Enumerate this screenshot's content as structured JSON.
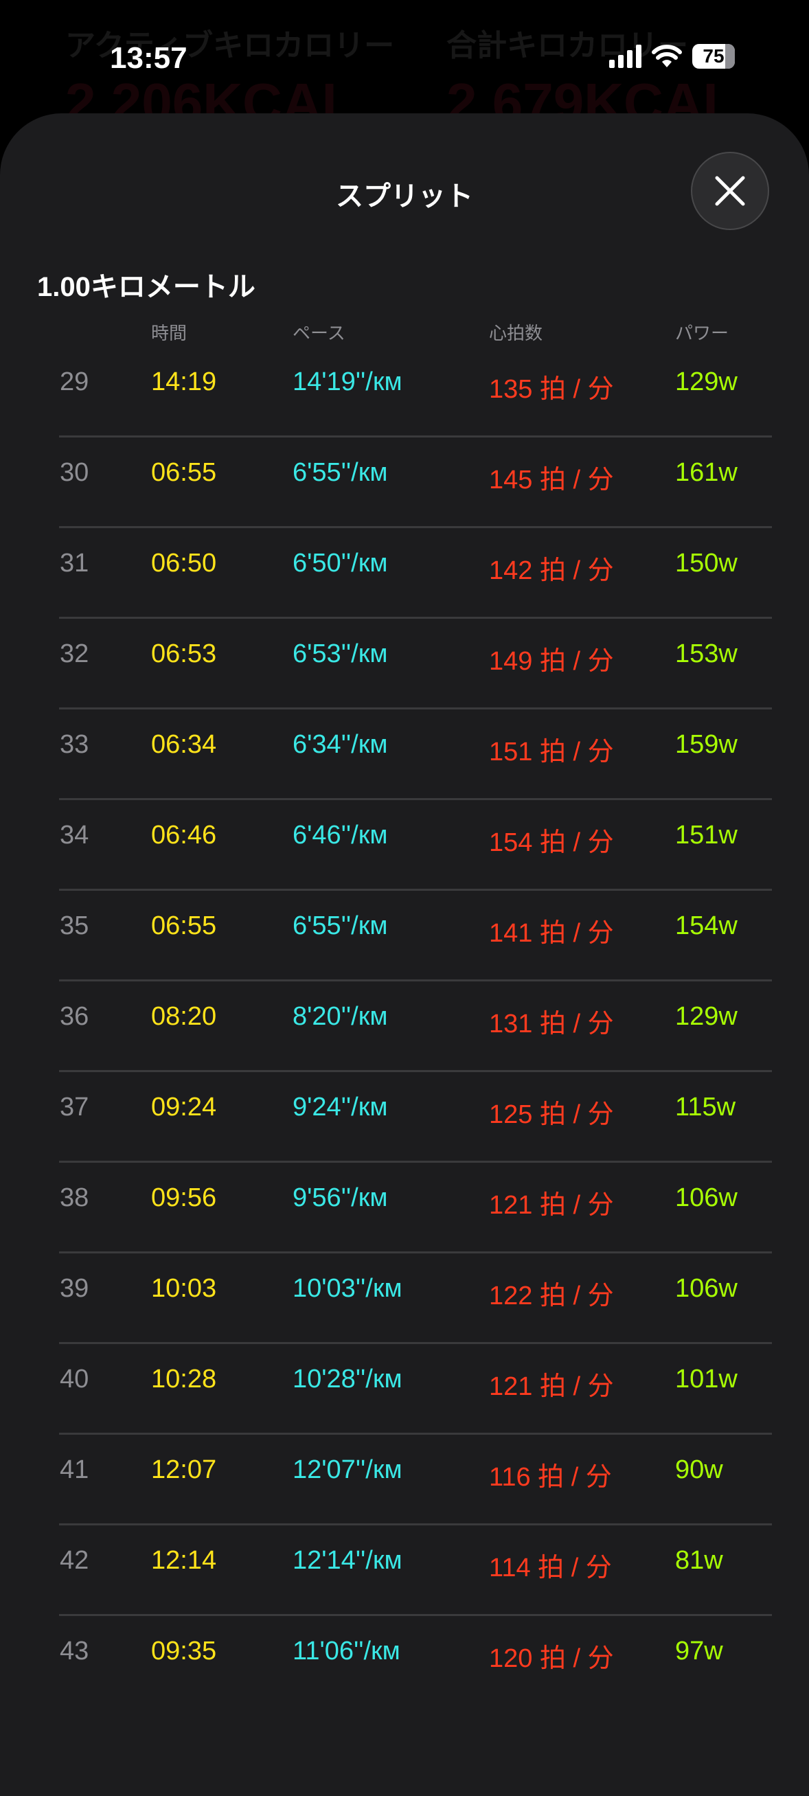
{
  "background": {
    "stats": [
      {
        "label": "アクティブキロカロリー",
        "value": "2,206KCAL"
      },
      {
        "label": "合計キロカロリー",
        "value": "2,679KCAL"
      }
    ]
  },
  "status_bar": {
    "time": "13:57",
    "battery": "75",
    "icons": [
      "cellular-signal-icon",
      "wifi-icon",
      "battery-icon"
    ]
  },
  "sheet": {
    "title": "スプリット",
    "close_icon": "close-icon",
    "section_title": "1.00キロメートル",
    "columns": {
      "time": "時間",
      "pace": "ペース",
      "heart_rate": "心拍数",
      "power": "パワー"
    },
    "colors": {
      "index": "#8e8e93",
      "time": "#ffe31a",
      "pace": "#3ae8e6",
      "heart_rate": "#ff3b1f",
      "power": "#a8ff04"
    },
    "rows": [
      {
        "index": "29",
        "time": "14:19",
        "pace": "14'19''/км",
        "heart_rate": "135 拍 / 分",
        "power": "129w"
      },
      {
        "index": "30",
        "time": "06:55",
        "pace": "6'55''/км",
        "heart_rate": "145 拍 / 分",
        "power": "161w"
      },
      {
        "index": "31",
        "time": "06:50",
        "pace": "6'50''/км",
        "heart_rate": "142 拍 / 分",
        "power": "150w"
      },
      {
        "index": "32",
        "time": "06:53",
        "pace": "6'53''/км",
        "heart_rate": "149 拍 / 分",
        "power": "153w"
      },
      {
        "index": "33",
        "time": "06:34",
        "pace": "6'34''/км",
        "heart_rate": "151 拍 / 分",
        "power": "159w"
      },
      {
        "index": "34",
        "time": "06:46",
        "pace": "6'46''/км",
        "heart_rate": "154 拍 / 分",
        "power": "151w"
      },
      {
        "index": "35",
        "time": "06:55",
        "pace": "6'55''/км",
        "heart_rate": "141 拍 / 分",
        "power": "154w"
      },
      {
        "index": "36",
        "time": "08:20",
        "pace": "8'20''/км",
        "heart_rate": "131 拍 / 分",
        "power": "129w"
      },
      {
        "index": "37",
        "time": "09:24",
        "pace": "9'24''/км",
        "heart_rate": "125 拍 / 分",
        "power": "115w"
      },
      {
        "index": "38",
        "time": "09:56",
        "pace": "9'56''/км",
        "heart_rate": "121 拍 / 分",
        "power": "106w"
      },
      {
        "index": "39",
        "time": "10:03",
        "pace": "10'03''/км",
        "heart_rate": "122 拍 / 分",
        "power": "106w"
      },
      {
        "index": "40",
        "time": "10:28",
        "pace": "10'28''/км",
        "heart_rate": "121 拍 / 分",
        "power": "101w"
      },
      {
        "index": "41",
        "time": "12:07",
        "pace": "12'07''/км",
        "heart_rate": "116 拍 / 分",
        "power": "90w"
      },
      {
        "index": "42",
        "time": "12:14",
        "pace": "12'14''/км",
        "heart_rate": "114 拍 / 分",
        "power": "81w"
      },
      {
        "index": "43",
        "time": "09:35",
        "pace": "11'06''/км",
        "heart_rate": "120 拍 / 分",
        "power": "97w"
      }
    ]
  }
}
